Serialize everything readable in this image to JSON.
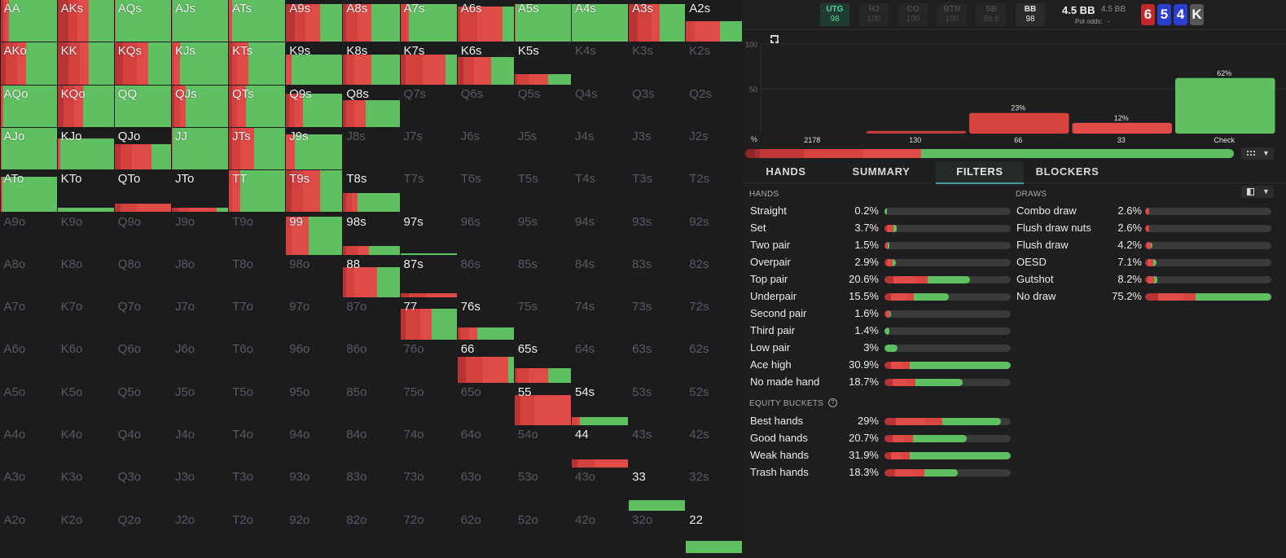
{
  "colors": {
    "red": "#e04a48",
    "darkred": "#b83434",
    "green": "#5fc062",
    "grey": "#3a3a3c"
  },
  "grid": {
    "cells": [
      [
        "AA",
        "AKs",
        "AQs",
        "AJs",
        "ATs",
        "A9s",
        "A8s",
        "A7s",
        "A6s",
        "A5s",
        "A4s",
        "A3s",
        "A2s"
      ],
      [
        "AKo",
        "KK",
        "KQs",
        "KJs",
        "KTs",
        "K9s",
        "K8s",
        "K7s",
        "K6s",
        "K5s",
        "K4s",
        "K3s",
        "K2s"
      ],
      [
        "AQo",
        "KQo",
        "QQ",
        "QJs",
        "QTs",
        "Q9s",
        "Q8s",
        "Q7s",
        "Q6s",
        "Q5s",
        "Q4s",
        "Q3s",
        "Q2s"
      ],
      [
        "AJo",
        "KJo",
        "QJo",
        "JJ",
        "JTs",
        "J9s",
        "J8s",
        "J7s",
        "J6s",
        "J5s",
        "J4s",
        "J3s",
        "J2s"
      ],
      [
        "ATo",
        "KTo",
        "QTo",
        "JTo",
        "TT",
        "T9s",
        "T8s",
        "T7s",
        "T6s",
        "T5s",
        "T4s",
        "T3s",
        "T2s"
      ],
      [
        "A9o",
        "K9o",
        "Q9o",
        "J9o",
        "T9o",
        "99",
        "98s",
        "97s",
        "96s",
        "95s",
        "94s",
        "93s",
        "92s"
      ],
      [
        "A8o",
        "K8o",
        "Q8o",
        "J8o",
        "T8o",
        "98o",
        "88",
        "87s",
        "86s",
        "85s",
        "84s",
        "83s",
        "82s"
      ],
      [
        "A7o",
        "K7o",
        "Q7o",
        "J7o",
        "T7o",
        "97o",
        "87o",
        "77",
        "76s",
        "75s",
        "74s",
        "73s",
        "72s"
      ],
      [
        "A6o",
        "K6o",
        "Q6o",
        "J6o",
        "T6o",
        "96o",
        "86o",
        "76o",
        "66",
        "65s",
        "64s",
        "63s",
        "62s"
      ],
      [
        "A5o",
        "K5o",
        "Q5o",
        "J5o",
        "T5o",
        "95o",
        "85o",
        "75o",
        "65o",
        "55",
        "54s",
        "53s",
        "52s"
      ],
      [
        "A4o",
        "K4o",
        "Q4o",
        "J4o",
        "T4o",
        "94o",
        "84o",
        "74o",
        "64o",
        "54o",
        "44",
        "43s",
        "42s"
      ],
      [
        "A3o",
        "K3o",
        "Q3o",
        "J3o",
        "T3o",
        "93o",
        "83o",
        "73o",
        "63o",
        "53o",
        "43o",
        "33",
        "32s"
      ],
      [
        "A2o",
        "K2o",
        "Q2o",
        "J2o",
        "T2o",
        "92o",
        "82o",
        "72o",
        "62o",
        "52o",
        "42o",
        "32o",
        "22"
      ]
    ],
    "strategies": {
      "AA": [
        1,
        [
          0,
          0.05,
          0.05,
          0.05,
          0.85
        ]
      ],
      "AKs": [
        1,
        [
          0,
          0.2,
          0.15,
          0.2,
          0.45
        ]
      ],
      "AQs": [
        1,
        [
          0,
          0,
          0,
          0.02,
          0.98
        ]
      ],
      "AJs": [
        1,
        [
          0,
          0,
          0,
          0.02,
          0.98
        ]
      ],
      "ATs": [
        1,
        [
          0,
          0,
          0,
          0.05,
          0.95
        ]
      ],
      "A9s": [
        0.9,
        [
          0,
          0.15,
          0.2,
          0.25,
          0.4
        ]
      ],
      "A8s": [
        0.9,
        [
          0,
          0.05,
          0.2,
          0.25,
          0.5
        ]
      ],
      "A7s": [
        0.9,
        [
          0,
          0,
          0.1,
          0.05,
          0.85
        ]
      ],
      "A6s": [
        0.85,
        [
          0,
          0.05,
          0.3,
          0.45,
          0.2
        ]
      ],
      "A5s": [
        0.9,
        [
          0,
          0,
          0,
          0.02,
          0.98
        ]
      ],
      "A4s": [
        0.9,
        [
          0,
          0,
          0,
          0,
          1
        ]
      ],
      "A3s": [
        0.9,
        [
          0,
          0.15,
          0.25,
          0.15,
          0.45
        ]
      ],
      "A2s": [
        0.5,
        [
          0,
          0,
          0.15,
          0.45,
          0.4
        ]
      ],
      "AKo": [
        1,
        [
          0,
          0.1,
          0.2,
          0.15,
          0.55
        ]
      ],
      "KK": [
        1,
        [
          0,
          0.2,
          0.2,
          0.15,
          0.45
        ]
      ],
      "KQs": [
        1,
        [
          0,
          0.15,
          0.25,
          0.2,
          0.4
        ]
      ],
      "KJs": [
        1,
        [
          0,
          0,
          0.05,
          0.1,
          0.85
        ]
      ],
      "KTs": [
        1,
        [
          0,
          0.05,
          0.1,
          0.2,
          0.65
        ]
      ],
      "K9s": [
        0.72,
        [
          0,
          0,
          0,
          0.1,
          0.9
        ]
      ],
      "K8s": [
        0.72,
        [
          0,
          0.05,
          0.15,
          0.3,
          0.5
        ]
      ],
      "K7s": [
        0.72,
        [
          0,
          0.1,
          0.3,
          0.4,
          0.2
        ]
      ],
      "K6s": [
        0.65,
        [
          0,
          0.1,
          0.2,
          0.3,
          0.4
        ]
      ],
      "K5s": [
        0.25,
        [
          0,
          0.05,
          0.2,
          0.35,
          0.4
        ]
      ],
      "AQo": [
        1,
        [
          0,
          0,
          0.02,
          0.03,
          0.95
        ]
      ],
      "KQo": [
        1,
        [
          0,
          0.1,
          0.2,
          0.15,
          0.55
        ]
      ],
      "QQ": [
        1,
        [
          0,
          0,
          0,
          0,
          1
        ]
      ],
      "QJs": [
        1,
        [
          0,
          0.05,
          0.1,
          0.1,
          0.75
        ]
      ],
      "QTs": [
        1,
        [
          0,
          0.05,
          0.1,
          0.15,
          0.7
        ]
      ],
      "Q9s": [
        0.8,
        [
          0,
          0.05,
          0.1,
          0.15,
          0.7
        ]
      ],
      "Q8s": [
        0.65,
        [
          0,
          0.05,
          0.15,
          0.2,
          0.6
        ]
      ],
      "AJo": [
        1,
        [
          0,
          0,
          0,
          0.02,
          0.98
        ]
      ],
      "KJo": [
        0.75,
        [
          0,
          0,
          0,
          0.05,
          0.95
        ]
      ],
      "QJo": [
        0.6,
        [
          0,
          0.1,
          0.2,
          0.35,
          0.35
        ]
      ],
      "JJ": [
        1,
        [
          0,
          0,
          0,
          0.02,
          0.98
        ]
      ],
      "JTs": [
        1,
        [
          0,
          0.05,
          0.15,
          0.25,
          0.55
        ]
      ],
      "J9s": [
        0.85,
        [
          0,
          0,
          0,
          0.15,
          0.85
        ]
      ],
      "ATo": [
        0.85,
        [
          0,
          0,
          0,
          0.03,
          0.97
        ]
      ],
      "KTo": [
        0.1,
        [
          0,
          0,
          0,
          0,
          1
        ]
      ],
      "QTo": [
        0.2,
        [
          0,
          0.1,
          0.3,
          0.6,
          0
        ]
      ],
      "JTo": [
        0.1,
        [
          0,
          0.1,
          0.2,
          0.5,
          0.2
        ]
      ],
      "TT": [
        1,
        [
          0,
          0,
          0.05,
          0.15,
          0.8
        ]
      ],
      "T9s": [
        1,
        [
          0,
          0.1,
          0.2,
          0.3,
          0.4
        ]
      ],
      "T8s": [
        0.45,
        [
          0,
          0.05,
          0.1,
          0.1,
          0.75
        ]
      ],
      "99": [
        0.92,
        [
          0,
          0,
          0.1,
          0.3,
          0.6
        ]
      ],
      "98s": [
        0.22,
        [
          0,
          0.05,
          0.2,
          0.2,
          0.55
        ]
      ],
      "97s": [
        0.04,
        [
          0,
          0,
          0,
          0,
          1
        ]
      ],
      "88": [
        0.72,
        [
          0,
          0.05,
          0.15,
          0.4,
          0.4
        ]
      ],
      "87s": [
        0.1,
        [
          0,
          0.15,
          0.3,
          0.55,
          0
        ]
      ],
      "77": [
        0.75,
        [
          0,
          0.1,
          0.25,
          0.2,
          0.45
        ]
      ],
      "76s": [
        0.3,
        [
          0,
          0.05,
          0.15,
          0.15,
          0.65
        ]
      ],
      "66": [
        0.62,
        [
          0,
          0.15,
          0.3,
          0.45,
          0.1
        ]
      ],
      "65s": [
        0.35,
        [
          0,
          0.05,
          0.2,
          0.35,
          0.4
        ]
      ],
      "55": [
        0.72,
        [
          0,
          0.1,
          0.25,
          0.65,
          0
        ]
      ],
      "54s": [
        0.2,
        [
          0,
          0,
          0.1,
          0.05,
          0.85
        ]
      ],
      "44": [
        0.2,
        [
          0,
          0.1,
          0.3,
          0.6,
          0
        ]
      ],
      "33": [
        0.25,
        [
          0,
          0,
          0,
          0,
          1
        ]
      ],
      "22": [
        0.3,
        [
          0,
          0,
          0,
          0,
          1
        ]
      ]
    }
  },
  "topbar": {
    "positions": [
      {
        "name": "UTG",
        "stack": "98",
        "state": "active"
      },
      {
        "name": "HJ",
        "stack": "100",
        "state": "folded"
      },
      {
        "name": "CO",
        "stack": "100",
        "state": "folded"
      },
      {
        "name": "BTN",
        "stack": "100",
        "state": "folded"
      },
      {
        "name": "SB",
        "stack": "99.5",
        "state": "folded"
      },
      {
        "name": "BB",
        "stack": "98",
        "state": "normal"
      }
    ],
    "pot": "4.5 BB",
    "pot_secondary": "4.5 BB",
    "pot_odds_label": "Pot odds:",
    "pot_odds_value": "-",
    "board": [
      {
        "rank": "6",
        "color": "#c0282c"
      },
      {
        "rank": "5",
        "color": "#2a3fcf"
      },
      {
        "rank": "4",
        "color": "#2a3fcf"
      },
      {
        "rank": "K",
        "color": "#555558"
      }
    ]
  },
  "chart_data": {
    "type": "bar",
    "categories": [
      "2178",
      "130",
      "66",
      "33",
      "Check"
    ],
    "values": [
      0,
      3,
      23,
      12,
      62
    ],
    "value_labels": [
      "",
      "",
      "23%",
      "12%",
      "62%"
    ],
    "colors": [
      "#b83434",
      "#c03a36",
      "#d6433f",
      "#e04a48",
      "#5fc062"
    ],
    "ylim": [
      0,
      100
    ],
    "yticks": [
      "100",
      "50"
    ],
    "ylabel": "%"
  },
  "strategy_bar": [
    0.02,
    0.01,
    0.09,
    0.12,
    0.12,
    0.64
  ],
  "tabs": [
    "HANDS",
    "SUMMARY",
    "FILTERS",
    "BLOCKERS"
  ],
  "active_tab": "FILTERS",
  "hands_section": {
    "title": "HANDS",
    "rows": [
      {
        "name": "Straight",
        "pct": "0.2%",
        "fill": 0.01,
        "mix": [
          0,
          0,
          0,
          0,
          1
        ]
      },
      {
        "name": "Set",
        "pct": "3.7%",
        "fill": 0.1,
        "mix": [
          0,
          0.2,
          0.3,
          0.2,
          0.3
        ]
      },
      {
        "name": "Two pair",
        "pct": "1.5%",
        "fill": 0.04,
        "mix": [
          0,
          0.2,
          0.2,
          0.2,
          0.4
        ]
      },
      {
        "name": "Overpair",
        "pct": "2.9%",
        "fill": 0.09,
        "mix": [
          0,
          0.2,
          0.3,
          0.2,
          0.3
        ]
      },
      {
        "name": "Top pair",
        "pct": "20.6%",
        "fill": 0.68,
        "mix": [
          0,
          0.1,
          0.25,
          0.15,
          0.5
        ]
      },
      {
        "name": "Underpair",
        "pct": "15.5%",
        "fill": 0.51,
        "mix": [
          0,
          0.1,
          0.25,
          0.1,
          0.55
        ]
      },
      {
        "name": "Second pair",
        "pct": "1.6%",
        "fill": 0.05,
        "mix": [
          0,
          0.2,
          0.5,
          0.1,
          0.2
        ]
      },
      {
        "name": "Third pair",
        "pct": "1.4%",
        "fill": 0.04,
        "mix": [
          0,
          0,
          0,
          0,
          1
        ]
      },
      {
        "name": "Low pair",
        "pct": "3%",
        "fill": 0.1,
        "mix": [
          0,
          0,
          0,
          0,
          1
        ]
      },
      {
        "name": "Ace high",
        "pct": "30.9%",
        "fill": 1.0,
        "mix": [
          0,
          0.05,
          0.1,
          0.05,
          0.8
        ]
      },
      {
        "name": "No made hand",
        "pct": "18.7%",
        "fill": 0.62,
        "mix": [
          0,
          0.1,
          0.2,
          0.1,
          0.6
        ]
      }
    ]
  },
  "equity_section": {
    "title": "EQUITY BUCKETS",
    "rows": [
      {
        "name": "Best hands",
        "pct": "29%",
        "fill": 0.92,
        "mix": [
          0,
          0.1,
          0.25,
          0.15,
          0.5
        ]
      },
      {
        "name": "Good hands",
        "pct": "20.7%",
        "fill": 0.65,
        "mix": [
          0,
          0.1,
          0.15,
          0.1,
          0.65
        ]
      },
      {
        "name": "Weak hands",
        "pct": "31.9%",
        "fill": 1.0,
        "mix": [
          0,
          0.05,
          0.1,
          0.05,
          0.8
        ]
      },
      {
        "name": "Trash hands",
        "pct": "18.3%",
        "fill": 0.58,
        "mix": [
          0,
          0.15,
          0.25,
          0.15,
          0.45
        ]
      }
    ]
  },
  "draws_section": {
    "title": "DRAWS",
    "rows": [
      {
        "name": "Combo draw",
        "pct": "2.6%",
        "fill": 0.03,
        "mix": [
          0,
          0.3,
          0.4,
          0.3,
          0
        ]
      },
      {
        "name": "Flush draw nuts",
        "pct": "2.6%",
        "fill": 0.03,
        "mix": [
          0,
          0.3,
          0.4,
          0.3,
          0
        ]
      },
      {
        "name": "Flush draw",
        "pct": "4.2%",
        "fill": 0.06,
        "mix": [
          0,
          0.2,
          0.3,
          0.2,
          0.3
        ]
      },
      {
        "name": "OESD",
        "pct": "7.1%",
        "fill": 0.09,
        "mix": [
          0,
          0.2,
          0.3,
          0.2,
          0.3
        ]
      },
      {
        "name": "Gutshot",
        "pct": "8.2%",
        "fill": 0.1,
        "mix": [
          0,
          0.2,
          0.3,
          0.2,
          0.3
        ]
      },
      {
        "name": "No draw",
        "pct": "75.2%",
        "fill": 1.0,
        "mix": [
          0,
          0.1,
          0.2,
          0.1,
          0.6
        ]
      }
    ]
  }
}
